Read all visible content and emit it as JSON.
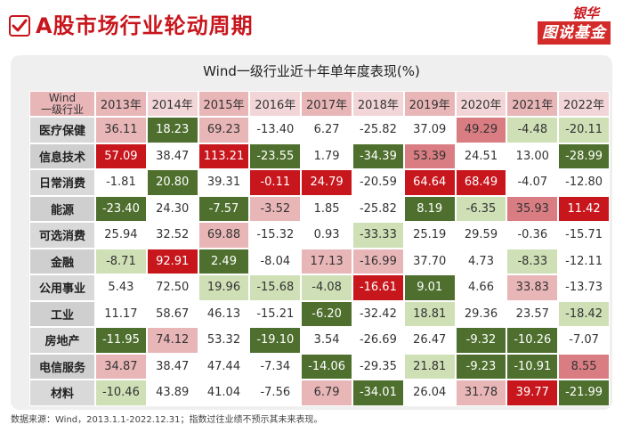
{
  "header": {
    "title": "A股市场行业轮动周期",
    "brand_top": "银华",
    "brand_bottom": "图说基金"
  },
  "chart_data": {
    "type": "heatmap",
    "title": "Wind一级行业近十年单年度表现(%)",
    "corner_label_line1": "Wind",
    "corner_label_line2": "一级行业",
    "columns": [
      "2013年",
      "2014年",
      "2015年",
      "2016年",
      "2017年",
      "2018年",
      "2019年",
      "2020年",
      "2021年",
      "2022年"
    ],
    "rows": [
      "医疗保健",
      "信息技术",
      "日常消费",
      "能源",
      "可选消费",
      "金融",
      "公用事业",
      "工业",
      "房地产",
      "电信服务",
      "材料"
    ],
    "values": [
      [
        36.11,
        18.23,
        69.23,
        -13.4,
        6.27,
        -25.82,
        37.09,
        49.29,
        -4.48,
        -20.11
      ],
      [
        57.09,
        38.47,
        113.21,
        -23.55,
        1.79,
        -34.39,
        53.39,
        24.51,
        13.0,
        -28.99
      ],
      [
        -1.81,
        20.8,
        39.31,
        -0.11,
        24.79,
        -20.59,
        64.64,
        68.49,
        -4.07,
        -12.8
      ],
      [
        -23.4,
        24.3,
        -7.57,
        -3.52,
        1.85,
        -25.82,
        8.19,
        -6.35,
        35.93,
        11.42
      ],
      [
        25.94,
        32.52,
        69.88,
        -15.32,
        0.93,
        -33.33,
        25.19,
        29.59,
        -0.36,
        -15.71
      ],
      [
        -8.71,
        92.91,
        2.49,
        -8.04,
        17.13,
        -16.99,
        37.7,
        4.73,
        -8.33,
        -12.11
      ],
      [
        5.43,
        72.5,
        19.96,
        -15.68,
        -4.08,
        -16.61,
        9.01,
        4.66,
        33.83,
        -13.73
      ],
      [
        11.17,
        58.67,
        46.13,
        -15.21,
        -6.2,
        -32.42,
        18.81,
        29.36,
        23.57,
        -18.42
      ],
      [
        -11.95,
        74.12,
        53.32,
        -19.1,
        3.54,
        -26.69,
        26.47,
        -9.32,
        -10.26,
        -7.07
      ],
      [
        34.87,
        38.47,
        47.44,
        -7.34,
        -14.06,
        -29.35,
        21.81,
        -9.23,
        -10.91,
        8.55
      ],
      [
        -10.46,
        43.89,
        41.04,
        -7.56,
        6.79,
        -34.01,
        26.04,
        31.78,
        39.77,
        -21.99
      ]
    ],
    "cell_colors": [
      [
        "#e9b6b8",
        "#4e6f2e",
        "#e9b6b8",
        "#ffffff",
        "#ffffff",
        "#ffffff",
        "#ffffff",
        "#d97d83",
        "#cfe0b6",
        "#cfe0b6"
      ],
      [
        "#c8161d",
        "#ffffff",
        "#c8161d",
        "#4e6f2e",
        "#ffffff",
        "#4e6f2e",
        "#d97d83",
        "#ffffff",
        "#ffffff",
        "#4e6f2e"
      ],
      [
        "#ffffff",
        "#4e6f2e",
        "#ffffff",
        "#c8161d",
        "#c8161d",
        "#ffffff",
        "#c8161d",
        "#c8161d",
        "#ffffff",
        "#ffffff"
      ],
      [
        "#4e6f2e",
        "#ffffff",
        "#4e6f2e",
        "#e9b6b8",
        "#ffffff",
        "#ffffff",
        "#4e6f2e",
        "#cfe0b6",
        "#d97d83",
        "#c8161d"
      ],
      [
        "#ffffff",
        "#ffffff",
        "#e9b6b8",
        "#ffffff",
        "#ffffff",
        "#cfe0b6",
        "#ffffff",
        "#ffffff",
        "#ffffff",
        "#ffffff"
      ],
      [
        "#cfe0b6",
        "#c8161d",
        "#4e6f2e",
        "#ffffff",
        "#e9b6b8",
        "#e9b6b8",
        "#ffffff",
        "#ffffff",
        "#cfe0b6",
        "#ffffff"
      ],
      [
        "#ffffff",
        "#ffffff",
        "#cfe0b6",
        "#cfe0b6",
        "#cfe0b6",
        "#c8161d",
        "#4e6f2e",
        "#ffffff",
        "#e9b6b8",
        "#ffffff"
      ],
      [
        "#ffffff",
        "#ffffff",
        "#ffffff",
        "#ffffff",
        "#4e6f2e",
        "#ffffff",
        "#cfe0b6",
        "#ffffff",
        "#ffffff",
        "#cfe0b6"
      ],
      [
        "#4e6f2e",
        "#e9b6b8",
        "#ffffff",
        "#4e6f2e",
        "#ffffff",
        "#ffffff",
        "#ffffff",
        "#4e6f2e",
        "#4e6f2e",
        "#ffffff"
      ],
      [
        "#e9b6b8",
        "#ffffff",
        "#ffffff",
        "#ffffff",
        "#4e6f2e",
        "#ffffff",
        "#cfe0b6",
        "#4e6f2e",
        "#4e6f2e",
        "#d97d83"
      ],
      [
        "#cfe0b6",
        "#ffffff",
        "#ffffff",
        "#ffffff",
        "#e9b6b8",
        "#4e6f2e",
        "#ffffff",
        "#e9b6b8",
        "#c8161d",
        "#4e6f2e"
      ]
    ],
    "header_colors": [
      "#e9b6b8",
      "#f2d6d7",
      "#e9b6b8",
      "#f2d6d7",
      "#e9b6b8",
      "#f2d6d7",
      "#e9b6b8",
      "#f2d6d7",
      "#e9b6b8",
      "#f2d6d7"
    ]
  },
  "footer": {
    "note": "数据来源：Wind，2013.1.1-2022.12.31；指数过往业绩不预示其未来表现。"
  }
}
